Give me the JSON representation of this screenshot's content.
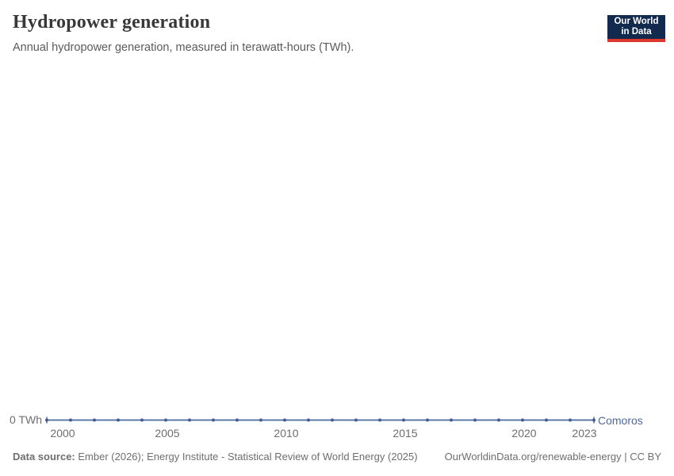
{
  "header": {
    "title": "Hydropower generation",
    "subtitle": "Annual hydropower generation, measured in terawatt-hours (TWh)."
  },
  "logo": {
    "line1": "Our World",
    "line2": "in Data",
    "bg_color": "#122a4e",
    "accent_color": "#dc382d"
  },
  "chart_data": {
    "type": "line",
    "title": "Hydropower generation",
    "xlabel": "",
    "ylabel": "TWh",
    "x": [
      2000,
      2001,
      2002,
      2003,
      2004,
      2005,
      2006,
      2007,
      2008,
      2009,
      2010,
      2011,
      2012,
      2013,
      2014,
      2015,
      2016,
      2017,
      2018,
      2019,
      2020,
      2021,
      2022,
      2023
    ],
    "series": [
      {
        "name": "Comoros",
        "color": "#4C6A9C",
        "marker_color": "#3f5e95",
        "values": [
          0,
          0,
          0,
          0,
          0,
          0,
          0,
          0,
          0,
          0,
          0,
          0,
          0,
          0,
          0,
          0,
          0,
          0,
          0,
          0,
          0,
          0,
          0,
          0
        ]
      }
    ],
    "x_ticks": [
      2000,
      2005,
      2010,
      2015,
      2020,
      2023
    ],
    "y_ticks": [
      "0 TWh"
    ],
    "xlim": [
      2000,
      2023
    ],
    "ylim": [
      0,
      0
    ],
    "grid": "off",
    "legend_position": "end-of-line"
  },
  "footer": {
    "source_label": "Data source:",
    "source_text": "Ember (2026); Energy Institute - Statistical Review of World Energy (2025)",
    "link_text": "OurWorldinData.org/renewable-energy | CC BY"
  }
}
